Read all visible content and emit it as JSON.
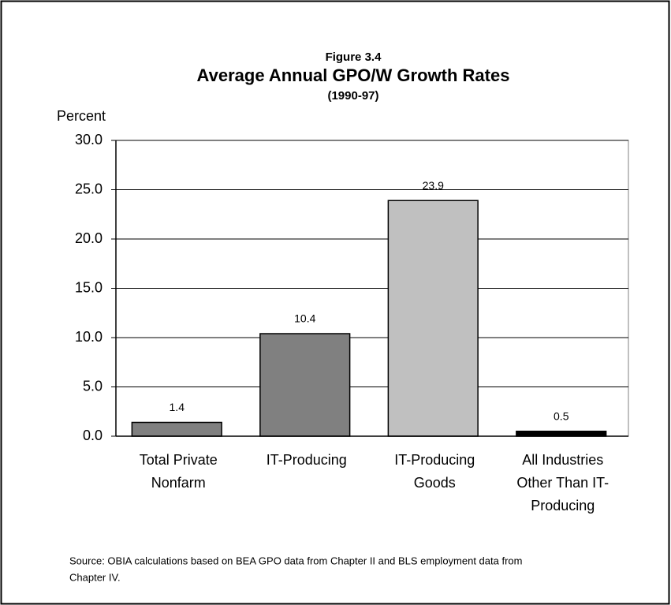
{
  "chart_data": {
    "type": "bar",
    "figure_label": "Figure 3.4",
    "title": "Average Annual GPO/W Growth Rates",
    "subtitle": "(1990-97)",
    "y_label": "Percent",
    "categories": [
      [
        "Total Private",
        "Nonfarm"
      ],
      [
        "IT-Producing"
      ],
      [
        "IT-Producing",
        "Goods"
      ],
      [
        "All Industries",
        "Other Than IT-",
        "Producing"
      ]
    ],
    "values": [
      1.4,
      10.4,
      23.9,
      0.5
    ],
    "colors": [
      "#808080",
      "#808080",
      "#c0c0c0",
      "#000000"
    ],
    "ylim": [
      0,
      30
    ],
    "yticks": [
      {
        "value": 0,
        "label": "0.0"
      },
      {
        "value": 5,
        "label": "5.0"
      },
      {
        "value": 10,
        "label": "10.0"
      },
      {
        "value": 15,
        "label": "15.0"
      },
      {
        "value": 20,
        "label": "20.0"
      },
      {
        "value": 25,
        "label": "25.0"
      },
      {
        "value": 30,
        "label": "30.0"
      }
    ],
    "grid": true,
    "source": [
      "Source: OBIA calculations based on BEA GPO data from Chapter II and BLS employment data from",
      "Chapter IV."
    ]
  }
}
